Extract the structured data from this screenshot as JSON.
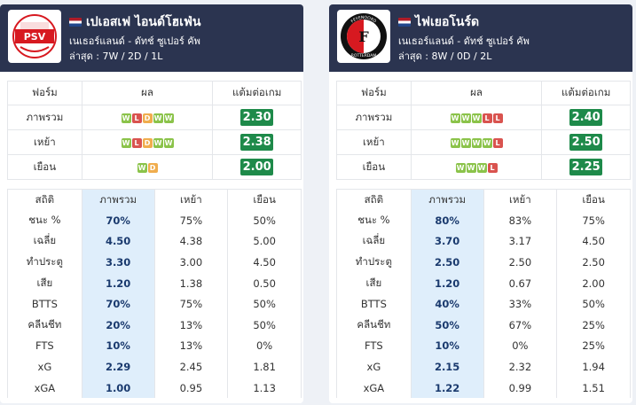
{
  "teams": [
    {
      "name": "เปเอสเฟ ไอนด์โฮเฟ่น",
      "league": "เนเธอร์แลนด์ - ดัทช์ ซูเปอร์ คัพ",
      "recent": "ล่าสุด : 7W / 2D / 1L",
      "logo_text": "PSV",
      "form_headers": [
        "ฟอร์ม",
        "ผล",
        "แต้มต่อเกม"
      ],
      "form_rows": [
        {
          "label": "ภาพรวม",
          "results": [
            "W",
            "L",
            "D",
            "W",
            "W"
          ],
          "ppg": "2.30"
        },
        {
          "label": "เหย้า",
          "results": [
            "W",
            "L",
            "D",
            "W",
            "W"
          ],
          "ppg": "2.38"
        },
        {
          "label": "เยือน",
          "results": [
            "W",
            "D"
          ],
          "ppg": "2.00"
        }
      ],
      "stat_headers": [
        "สถิติ",
        "ภาพรวม",
        "เหย้า",
        "เยือน"
      ],
      "stat_rows": [
        [
          "ชนะ %",
          "70%",
          "75%",
          "50%"
        ],
        [
          "เฉลี่ย",
          "4.50",
          "4.38",
          "5.00"
        ],
        [
          "ทำประตู",
          "3.30",
          "3.00",
          "4.50"
        ],
        [
          "เสีย",
          "1.20",
          "1.38",
          "0.50"
        ],
        [
          "BTTS",
          "70%",
          "75%",
          "50%"
        ],
        [
          "คลีนชีท",
          "20%",
          "13%",
          "50%"
        ],
        [
          "FTS",
          "10%",
          "13%",
          "0%"
        ],
        [
          "xG",
          "2.29",
          "2.45",
          "1.81"
        ],
        [
          "xGA",
          "1.00",
          "0.95",
          "1.13"
        ]
      ]
    },
    {
      "name": "ไฟเยอโนร์ด",
      "league": "เนเธอร์แลนด์ - ดัทช์ ซูเปอร์ คัพ",
      "recent": "ล่าสุด : 8W / 0D / 2L",
      "logo_text": "FEYENOORD ROTTERDAM",
      "form_headers": [
        "ฟอร์ม",
        "ผล",
        "แต้มต่อเกม"
      ],
      "form_rows": [
        {
          "label": "ภาพรวม",
          "results": [
            "W",
            "W",
            "W",
            "L",
            "L"
          ],
          "ppg": "2.40"
        },
        {
          "label": "เหย้า",
          "results": [
            "W",
            "W",
            "W",
            "W",
            "L"
          ],
          "ppg": "2.50"
        },
        {
          "label": "เยือน",
          "results": [
            "W",
            "W",
            "W",
            "L"
          ],
          "ppg": "2.25"
        }
      ],
      "stat_headers": [
        "สถิติ",
        "ภาพรวม",
        "เหย้า",
        "เยือน"
      ],
      "stat_rows": [
        [
          "ชนะ %",
          "80%",
          "83%",
          "75%"
        ],
        [
          "เฉลี่ย",
          "3.70",
          "3.17",
          "4.50"
        ],
        [
          "ทำประตู",
          "2.50",
          "2.50",
          "2.50"
        ],
        [
          "เสีย",
          "1.20",
          "0.67",
          "2.00"
        ],
        [
          "BTTS",
          "40%",
          "33%",
          "50%"
        ],
        [
          "คลีนชีท",
          "50%",
          "67%",
          "25%"
        ],
        [
          "FTS",
          "10%",
          "0%",
          "25%"
        ],
        [
          "xG",
          "2.15",
          "2.32",
          "1.94"
        ],
        [
          "xGA",
          "1.22",
          "0.99",
          "1.51"
        ]
      ]
    }
  ]
}
